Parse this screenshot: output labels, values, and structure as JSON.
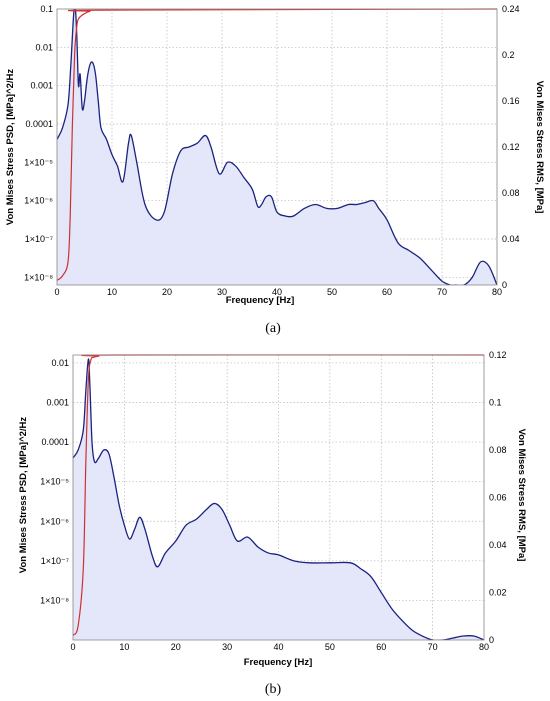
{
  "chart_data": [
    {
      "type": "area",
      "panel_label": "(a)",
      "xlabel": "Frequency [Hz]",
      "ylabel_left": "Von Mises Stress PSD, [MPa]^2/Hz",
      "ylabel_right": "Von Mises Stress RMS, [MPa]",
      "xlim": [
        0,
        80
      ],
      "xticks": [
        "0",
        "10",
        "20",
        "30",
        "40",
        "50",
        "60",
        "70",
        "80"
      ],
      "ylim_left_log10": [
        -8.2,
        -1
      ],
      "yticks_left": [
        {
          "label": "0.1",
          "exp": -1
        },
        {
          "label": "0.01",
          "exp": -2
        },
        {
          "label": "0.001",
          "exp": -3
        },
        {
          "label": "0.0001",
          "exp": -4
        },
        {
          "label": "1×10⁻⁵",
          "exp": -5
        },
        {
          "label": "1×10⁻⁶",
          "exp": -6
        },
        {
          "label": "1×10⁻⁷",
          "exp": -7
        },
        {
          "label": "1×10⁻⁸",
          "exp": -8
        }
      ],
      "ylim_right": [
        0,
        0.24
      ],
      "yticks_right": [
        "0",
        "0.04",
        "0.08",
        "0.12",
        "0.16",
        "0.2",
        "0.24"
      ],
      "grid": true,
      "series": [
        {
          "role": "psd",
          "axis": "left",
          "color": "#1a237e",
          "fill": "#e4e6fa",
          "x": [
            0,
            1,
            2,
            2.5,
            3,
            3.3,
            3.6,
            3.9,
            4.2,
            4.6,
            5.0,
            5.5,
            6.0,
            6.5,
            7.0,
            7.5,
            8.0,
            9.0,
            10.0,
            11.0,
            12.0,
            13.0,
            13.5,
            14.5,
            16.0,
            18.0,
            19.5,
            21.0,
            22.5,
            24.0,
            25.5,
            27.0,
            28.0,
            29.5,
            31.0,
            32.5,
            34.0,
            35.5,
            36.5,
            37.2,
            38.0,
            39.0,
            40.0,
            41.5,
            43.0,
            45.0,
            47.0,
            49.0,
            51.0,
            53.0,
            54.5,
            56.0,
            57.5,
            58.5,
            60.0,
            62.0,
            64.0,
            66.0,
            68.0,
            70.0,
            71.5,
            72.5,
            74.0,
            75.5,
            77.0,
            78.5,
            80.0
          ],
          "y_log10": [
            -4.4,
            -4.1,
            -3.5,
            -2.5,
            -1.2,
            -0.9,
            -1.7,
            -3.0,
            -2.7,
            -3.6,
            -3.4,
            -2.8,
            -2.45,
            -2.4,
            -2.7,
            -3.4,
            -4.1,
            -4.4,
            -4.8,
            -5.1,
            -5.5,
            -4.5,
            -4.3,
            -5.0,
            -6.1,
            -6.5,
            -6.3,
            -5.3,
            -4.7,
            -4.6,
            -4.5,
            -4.3,
            -4.6,
            -5.3,
            -5.0,
            -5.1,
            -5.4,
            -5.7,
            -6.15,
            -6.1,
            -5.9,
            -5.9,
            -6.3,
            -6.4,
            -6.4,
            -6.2,
            -6.1,
            -6.2,
            -6.2,
            -6.1,
            -6.1,
            -6.05,
            -6.0,
            -6.2,
            -6.5,
            -7.1,
            -7.3,
            -7.5,
            -7.8,
            -8.1,
            -8.3,
            -8.3,
            -8.2,
            -8.0,
            -7.6,
            -7.7,
            -8.2
          ]
        },
        {
          "role": "rms",
          "axis": "right",
          "color": "#d32f2f",
          "x": [
            0,
            1,
            2,
            2.4,
            2.8,
            3.2,
            3.6,
            4.0,
            5.0,
            6.0,
            8.0,
            80.0
          ],
          "y": [
            0.004,
            0.008,
            0.02,
            0.06,
            0.14,
            0.2,
            0.225,
            0.232,
            0.236,
            0.238,
            0.239,
            0.24
          ]
        }
      ]
    },
    {
      "type": "area",
      "panel_label": "(b)",
      "xlabel": "Frequency [Hz]",
      "ylabel_left": "Von Mises Stress PSD, [MPa]^2/Hz",
      "ylabel_right": "Von Mises Stress RMS, [MPa]",
      "xlim": [
        0,
        80
      ],
      "xticks": [
        "0",
        "10",
        "20",
        "30",
        "40",
        "50",
        "60",
        "70",
        "80"
      ],
      "ylim_left_log10": [
        -9,
        -1.8
      ],
      "yticks_left": [
        {
          "label": "0.01",
          "exp": -2
        },
        {
          "label": "0.001",
          "exp": -3
        },
        {
          "label": "0.0001",
          "exp": -4
        },
        {
          "label": "1×10⁻⁵",
          "exp": -5
        },
        {
          "label": "1×10⁻⁶",
          "exp": -6
        },
        {
          "label": "1×10⁻⁷",
          "exp": -7
        },
        {
          "label": "1×10⁻⁸",
          "exp": -8
        }
      ],
      "ylim_right": [
        0,
        0.12
      ],
      "yticks_right": [
        "0",
        "0.02",
        "0.04",
        "0.06",
        "0.08",
        "0.1",
        "0.12"
      ],
      "grid": true,
      "series": [
        {
          "role": "psd",
          "axis": "left",
          "color": "#1a237e",
          "fill": "#e4e6fa",
          "x": [
            0,
            1,
            2,
            2.5,
            3.0,
            3.3,
            3.7,
            4.2,
            5.0,
            6.0,
            7.0,
            8.0,
            9.0,
            10.0,
            11.0,
            12.0,
            13.0,
            14.0,
            15.5,
            16.5,
            18.0,
            20.0,
            22.0,
            24.0,
            26.0,
            27.5,
            29.0,
            30.5,
            32.0,
            34.0,
            36.0,
            38.0,
            40.0,
            43.0,
            46.0,
            50.0,
            54.0,
            56.0,
            58.0,
            60.0,
            62.0,
            64.0,
            66.0,
            68.0,
            70.0,
            72.0,
            74.0,
            76.0,
            78.0,
            80.0
          ],
          "y_log10": [
            -4.4,
            -4.2,
            -3.7,
            -2.7,
            -1.9,
            -2.6,
            -4.0,
            -4.5,
            -4.4,
            -4.2,
            -4.3,
            -4.9,
            -5.6,
            -6.1,
            -6.45,
            -6.2,
            -5.9,
            -6.2,
            -6.9,
            -7.15,
            -6.8,
            -6.5,
            -6.1,
            -5.95,
            -5.7,
            -5.55,
            -5.7,
            -6.1,
            -6.5,
            -6.4,
            -6.65,
            -6.8,
            -6.85,
            -7.0,
            -7.05,
            -7.05,
            -7.05,
            -7.2,
            -7.4,
            -7.8,
            -8.2,
            -8.5,
            -8.75,
            -8.9,
            -9.0,
            -9.0,
            -8.95,
            -8.9,
            -8.9,
            -9.0
          ]
        },
        {
          "role": "rms",
          "axis": "right",
          "color": "#d32f2f",
          "x": [
            0,
            1,
            2,
            2.5,
            3.0,
            3.5,
            4.0,
            5.0,
            8.0,
            80.0
          ],
          "y": [
            0.002,
            0.006,
            0.03,
            0.075,
            0.11,
            0.118,
            0.119,
            0.1195,
            0.12,
            0.12
          ]
        }
      ]
    }
  ]
}
